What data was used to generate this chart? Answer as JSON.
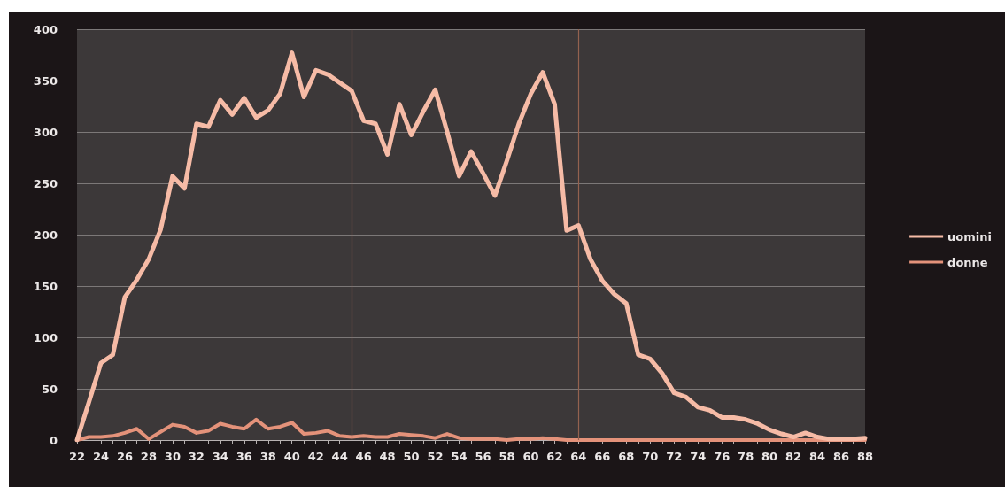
{
  "chart_data": {
    "type": "line",
    "x": [
      22,
      23,
      24,
      25,
      26,
      27,
      28,
      29,
      30,
      31,
      32,
      33,
      34,
      35,
      36,
      37,
      38,
      39,
      40,
      41,
      42,
      43,
      44,
      45,
      46,
      47,
      48,
      49,
      50,
      51,
      52,
      53,
      54,
      55,
      56,
      57,
      58,
      59,
      60,
      61,
      62,
      63,
      64,
      65,
      66,
      67,
      68,
      69,
      70,
      71,
      72,
      73,
      74,
      75,
      76,
      77,
      78,
      79,
      80,
      81,
      82,
      83,
      84,
      85,
      86,
      87,
      88
    ],
    "xlim": [
      22,
      88
    ],
    "xticks": [
      22,
      {
        "value": 23,
        "label": null
      },
      24,
      {
        "value": 25,
        "label": null
      },
      26,
      {
        "value": 27,
        "label": null
      },
      28,
      {
        "value": 29,
        "label": null
      },
      30,
      {
        "value": 31,
        "label": null
      },
      32,
      {
        "value": 33,
        "label": null
      },
      34,
      {
        "value": 35,
        "label": null
      },
      36,
      {
        "value": 37,
        "label": null
      },
      38,
      {
        "value": 39,
        "label": null
      },
      40,
      {
        "value": 41,
        "label": null
      },
      42,
      {
        "value": 43,
        "label": null
      },
      44,
      {
        "value": 45,
        "label": null
      },
      46,
      {
        "value": 47,
        "label": null
      },
      48,
      {
        "value": 49,
        "label": null
      },
      50,
      {
        "value": 51,
        "label": null
      },
      52,
      {
        "value": 53,
        "label": null
      },
      54,
      {
        "value": 55,
        "label": null
      },
      56,
      {
        "value": 57,
        "label": null
      },
      58,
      {
        "value": 59,
        "label": null
      },
      60,
      {
        "value": 61,
        "label": null
      },
      62,
      {
        "value": 63,
        "label": null
      },
      64,
      {
        "value": 65,
        "label": null
      },
      66,
      {
        "value": 67,
        "label": null
      },
      68,
      {
        "value": 69,
        "label": null
      },
      70,
      {
        "value": 71,
        "label": null
      },
      72,
      {
        "value": 73,
        "label": null
      },
      74,
      {
        "value": 75,
        "label": null
      },
      76,
      {
        "value": 77,
        "label": null
      },
      78,
      {
        "value": 79,
        "label": null
      },
      80,
      {
        "value": 81,
        "label": null
      },
      82,
      {
        "value": 83,
        "label": null
      },
      84,
      {
        "value": 85,
        "label": null
      },
      86,
      {
        "value": 87,
        "label": null
      },
      88
    ],
    "ylim": [
      0,
      400
    ],
    "yticks": [
      0,
      50,
      100,
      150,
      200,
      250,
      300,
      350,
      400
    ],
    "series": [
      {
        "name": "uomini",
        "color": "#f6bba6",
        "values": [
          0,
          37,
          75,
          83,
          139,
          156,
          176,
          205,
          257,
          245,
          308,
          305,
          331,
          317,
          333,
          314,
          321,
          337,
          377,
          334,
          360,
          356,
          348,
          340,
          311,
          308,
          278,
          327,
          297,
          320,
          341,
          300,
          257,
          281,
          260,
          238,
          272,
          308,
          337,
          358,
          327,
          204,
          209,
          176,
          155,
          142,
          133,
          83,
          79,
          65,
          46,
          42,
          32,
          29,
          22,
          22,
          20,
          16,
          10,
          6,
          3,
          7,
          3,
          1,
          1,
          1,
          2
        ]
      },
      {
        "name": "donne",
        "color": "#e4927a",
        "values": [
          0,
          3,
          3,
          4,
          7,
          11,
          1,
          8,
          15,
          13,
          7,
          9,
          16,
          13,
          11,
          20,
          11,
          13,
          17,
          6,
          7,
          9,
          4,
          3,
          4,
          3,
          3,
          6,
          5,
          4,
          2,
          6,
          2,
          1,
          1,
          1,
          0,
          1,
          1,
          2,
          1,
          0,
          0,
          0,
          0,
          0,
          0,
          0,
          0,
          0,
          0,
          0,
          0,
          0,
          0,
          0,
          0,
          0,
          0,
          0,
          0,
          0,
          0,
          0,
          0,
          0,
          0
        ]
      }
    ],
    "ref_lines": [
      {
        "axis": "x",
        "value": 45,
        "color": "#94624f",
        "line_style": "solid"
      },
      {
        "axis": "x",
        "value": 64,
        "color": "#94624f",
        "line_style": "solid"
      }
    ],
    "grid": "y",
    "legend": "right",
    "marker": "none",
    "line_style": "solid"
  }
}
